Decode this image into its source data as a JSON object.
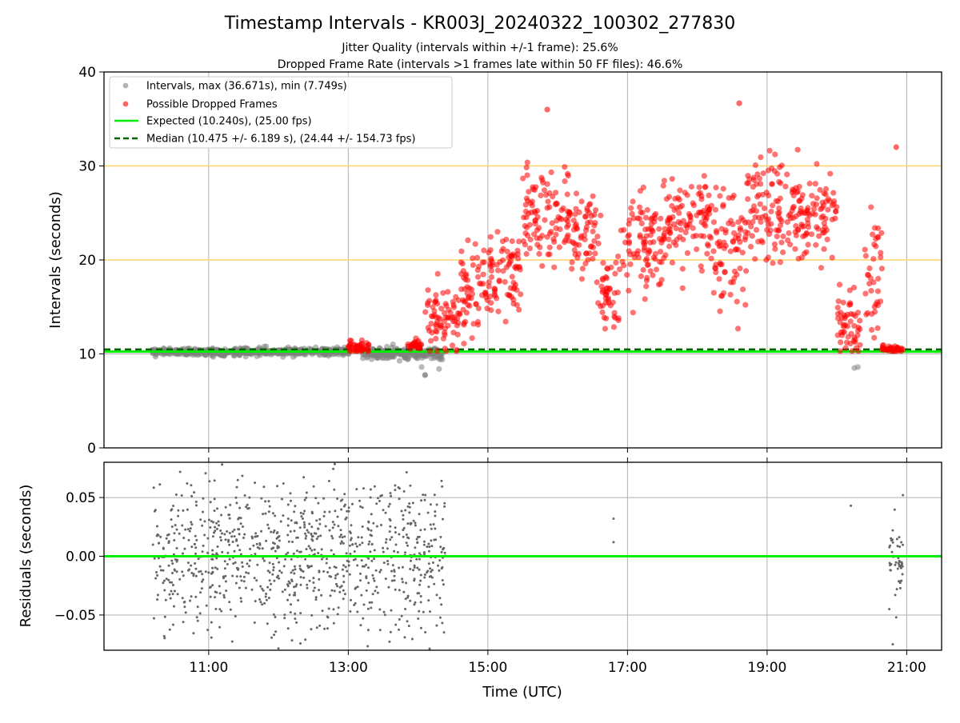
{
  "chart_data": {
    "type": "scatter",
    "title": "Timestamp Intervals - KR003J_20240322_100302_277830",
    "subtitle_lines": [
      "Jitter Quality (intervals within +/-1 frame): 25.6%",
      "Dropped Frame Rate (intervals >1 frames late within 50 FF files): 46.6%"
    ],
    "xlabel": "Time (UTC)",
    "x_tick_labels": [
      "11:00",
      "13:00",
      "15:00",
      "17:00",
      "19:00",
      "21:00"
    ],
    "x_range_hours": [
      9.5,
      21.5
    ],
    "colors": {
      "intervals": "#808080",
      "dropped": "#ff0000",
      "expected": "#00ee00",
      "median": "#006400",
      "reference_lines": "#ffd36b",
      "grid": "#b0b0b0"
    },
    "legend": {
      "placement": "upper-left",
      "entries": [
        "Intervals, max (36.671s), min (7.749s)",
        "Possible Dropped Frames",
        "Expected (10.240s), (25.00 fps)",
        "Median (10.475 +/- 6.189 s), (24.44 +/- 154.73 fps)"
      ]
    },
    "top_panel": {
      "ylabel": "Intervals (seconds)",
      "ylim": [
        0,
        40
      ],
      "y_ticks": [
        "0",
        "10",
        "20",
        "30",
        "40"
      ],
      "expected_interval": 10.24,
      "median_interval": 10.475,
      "reference_lines": [
        20,
        30
      ],
      "interval_max": 36.671,
      "interval_min": 7.749,
      "normal_segments": [
        {
          "start": 10.18,
          "end": 13.02,
          "mean": 10.24,
          "spread": 0.35
        },
        {
          "start": 13.2,
          "end": 14.35,
          "mean": 10.1,
          "spread": 0.6
        }
      ],
      "dropped_segments": [
        {
          "start": 13.0,
          "end": 13.3,
          "mean": 10.7,
          "spread": 0.6
        },
        {
          "start": 13.85,
          "end": 14.05,
          "mean": 10.9,
          "spread": 0.4
        },
        {
          "start": 14.1,
          "end": 14.6,
          "mean": 14.0,
          "spread": 2.5
        },
        {
          "start": 14.6,
          "end": 15.0,
          "mean": 16.5,
          "spread": 3.0
        },
        {
          "start": 15.0,
          "end": 15.5,
          "mean": 18.5,
          "spread": 4.0
        },
        {
          "start": 15.5,
          "end": 16.2,
          "mean": 24.5,
          "spread": 4.0
        },
        {
          "start": 16.2,
          "end": 16.6,
          "mean": 22.5,
          "spread": 4.5
        },
        {
          "start": 16.6,
          "end": 16.9,
          "mean": 16.5,
          "spread": 4.0
        },
        {
          "start": 16.9,
          "end": 17.5,
          "mean": 21.5,
          "spread": 4.5
        },
        {
          "start": 17.5,
          "end": 18.2,
          "mean": 24.5,
          "spread": 4.0
        },
        {
          "start": 18.2,
          "end": 18.7,
          "mean": 21.5,
          "spread": 5.5
        },
        {
          "start": 18.7,
          "end": 19.3,
          "mean": 25.5,
          "spread": 4.5
        },
        {
          "start": 19.3,
          "end": 20.0,
          "mean": 25.0,
          "spread": 3.5
        },
        {
          "start": 20.0,
          "end": 20.35,
          "mean": 13.5,
          "spread": 2.5
        },
        {
          "start": 20.4,
          "end": 20.65,
          "mean": 18.0,
          "spread": 6.0
        },
        {
          "start": 20.65,
          "end": 20.95,
          "mean": 10.5,
          "spread": 0.3
        }
      ],
      "notable_points": [
        {
          "time": 15.85,
          "interval": 36.0
        },
        {
          "time": 18.6,
          "interval": 36.67
        },
        {
          "time": 14.1,
          "interval": 7.75
        },
        {
          "time": 20.85,
          "interval": 32.0
        }
      ]
    },
    "bottom_panel": {
      "ylabel": "Residuals (seconds)",
      "ylim": [
        -0.08,
        0.08
      ],
      "y_ticks": [
        "−0.05",
        "0.00",
        "0.05"
      ],
      "residual_segments": [
        {
          "start": 10.2,
          "end": 14.4,
          "spread": 0.045
        },
        {
          "start": 20.75,
          "end": 20.95,
          "spread": 0.025
        }
      ],
      "isolated_residuals": [
        {
          "time": 16.8,
          "residual": 0.032
        },
        {
          "time": 16.8,
          "residual": 0.012
        },
        {
          "time": 20.2,
          "residual": 0.043
        },
        {
          "time": 20.75,
          "residual": -0.045
        },
        {
          "time": 20.85,
          "residual": -0.052
        },
        {
          "time": 20.8,
          "residual": -0.075
        }
      ]
    }
  }
}
